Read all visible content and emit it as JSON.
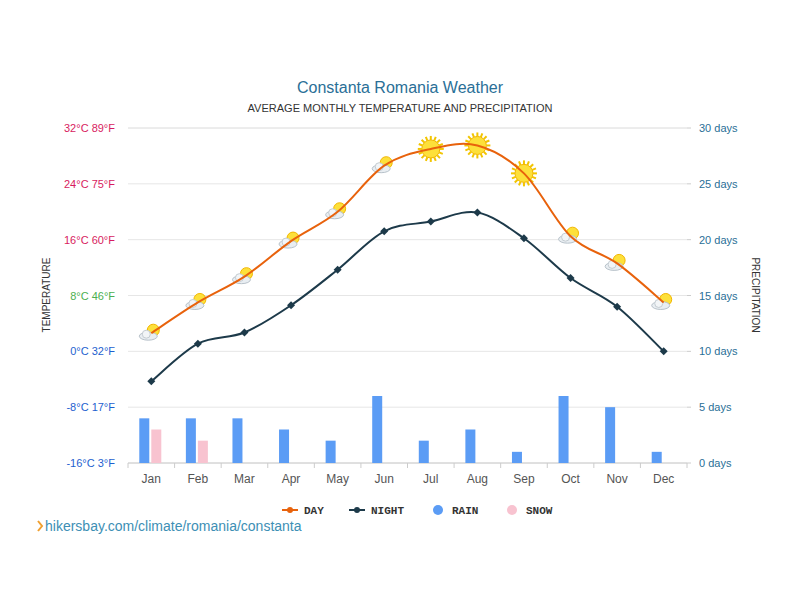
{
  "chart_data": {
    "type": "line",
    "title": "Constanta Romania Weather",
    "subtitle": "AVERAGE MONTHLY TEMPERATURE AND PRECIPITATION",
    "y_label": "TEMPERATURE",
    "y2_label": "PRECIPITATION",
    "source": "hikersbay.com/climate/romania/constanta",
    "categories": [
      "Jan",
      "Feb",
      "Mar",
      "Apr",
      "May",
      "Jun",
      "Jul",
      "Aug",
      "Sep",
      "Oct",
      "Nov",
      "Dec"
    ],
    "ylim": [
      -16,
      32
    ],
    "yticks": [
      {
        "value": -16,
        "label": "-16°C 3°F"
      },
      {
        "value": -8,
        "label": "-8°C 17°F"
      },
      {
        "value": 0,
        "label": "0°C 32°F"
      },
      {
        "value": 8,
        "label": "8°C 46°F"
      },
      {
        "value": 16,
        "label": "16°C 60°F"
      },
      {
        "value": 24,
        "label": "24°C 75°F"
      },
      {
        "value": 32,
        "label": "32°C 89°F"
      }
    ],
    "y2lim": [
      0,
      30
    ],
    "y2ticks": [
      {
        "value": 0,
        "label": "0 days"
      },
      {
        "value": 5,
        "label": "5 days"
      },
      {
        "value": 10,
        "label": "10 days"
      },
      {
        "value": 15,
        "label": "15 days"
      },
      {
        "value": 20,
        "label": "20 days"
      },
      {
        "value": 25,
        "label": "25 days"
      },
      {
        "value": 30,
        "label": "30 days"
      }
    ],
    "grid": true,
    "legend": "bottom",
    "series": [
      {
        "name": "DAY",
        "type": "line",
        "color": "#e8620c",
        "marker": "weather-icon",
        "values": [
          2.6,
          7,
          10.7,
          15.8,
          20,
          26.6,
          29,
          29.5,
          25.5,
          16.5,
          12.6,
          7
        ]
      },
      {
        "name": "NIGHT",
        "type": "line",
        "color": "#1d3a4a",
        "marker": "diamond",
        "values": [
          -4.3,
          1.1,
          2.7,
          6.6,
          11.7,
          17.2,
          18.6,
          19.9,
          16.2,
          10.5,
          6.4,
          0
        ]
      },
      {
        "name": "RAIN",
        "type": "bar",
        "axis": "y2",
        "color": "#5b9cf5",
        "values": [
          4,
          4,
          4,
          3,
          2,
          6,
          2,
          3,
          1,
          6,
          5,
          1
        ]
      },
      {
        "name": "SNOW",
        "type": "bar",
        "axis": "y2",
        "color": "#f8c3d0",
        "values": [
          3,
          2,
          0,
          0,
          0,
          0,
          0,
          0,
          0,
          0,
          0,
          0
        ]
      }
    ]
  }
}
